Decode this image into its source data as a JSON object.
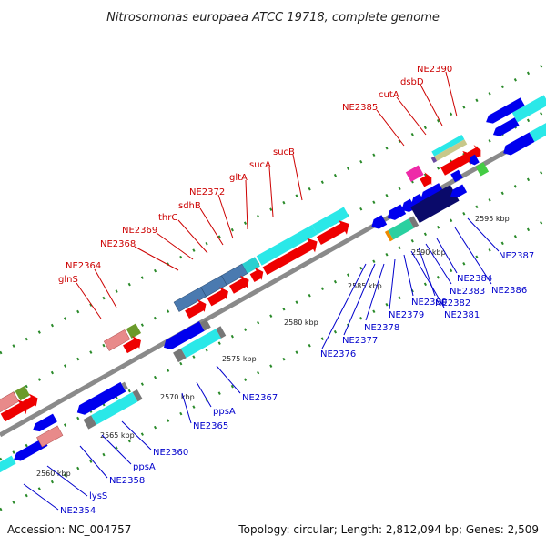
{
  "title": "Nitrosomonas europaea ATCC 19718, complete genome",
  "footer": {
    "accession": "Accession: NC_004757",
    "summary": "Topology: circular; Length: 2,812,094 bp; Genes: 2,509"
  },
  "colors": {
    "backbone": "#888888",
    "tick": "#2a8a2a",
    "red_label": "#cc0000",
    "blue_label": "#0000cc"
  },
  "ticks": [
    "2560 kbp",
    "2565 kbp",
    "2570 kbp",
    "2575 kbp",
    "2580 kbp",
    "2585 kbp",
    "2590 kbp",
    "2595 kbp"
  ],
  "labels_top": [
    "glnS",
    "NE2364",
    "NE2368",
    "NE2369",
    "thrC",
    "sdhB",
    "NE2372",
    "gltA",
    "sucA",
    "sucB",
    "NE2385",
    "cutA",
    "dsbD",
    "NE2390"
  ],
  "labels_bottom": [
    "NE2354",
    "lysS",
    "NE2358",
    "ppsA",
    "NE2360",
    "NE2365",
    "ppsA",
    "NE2367",
    "NE2376",
    "NE2377",
    "NE2378",
    "NE2379",
    "NE2380",
    "NE2381",
    "NE2382",
    "NE2383",
    "NE2384",
    "NE2386",
    "NE2387"
  ]
}
